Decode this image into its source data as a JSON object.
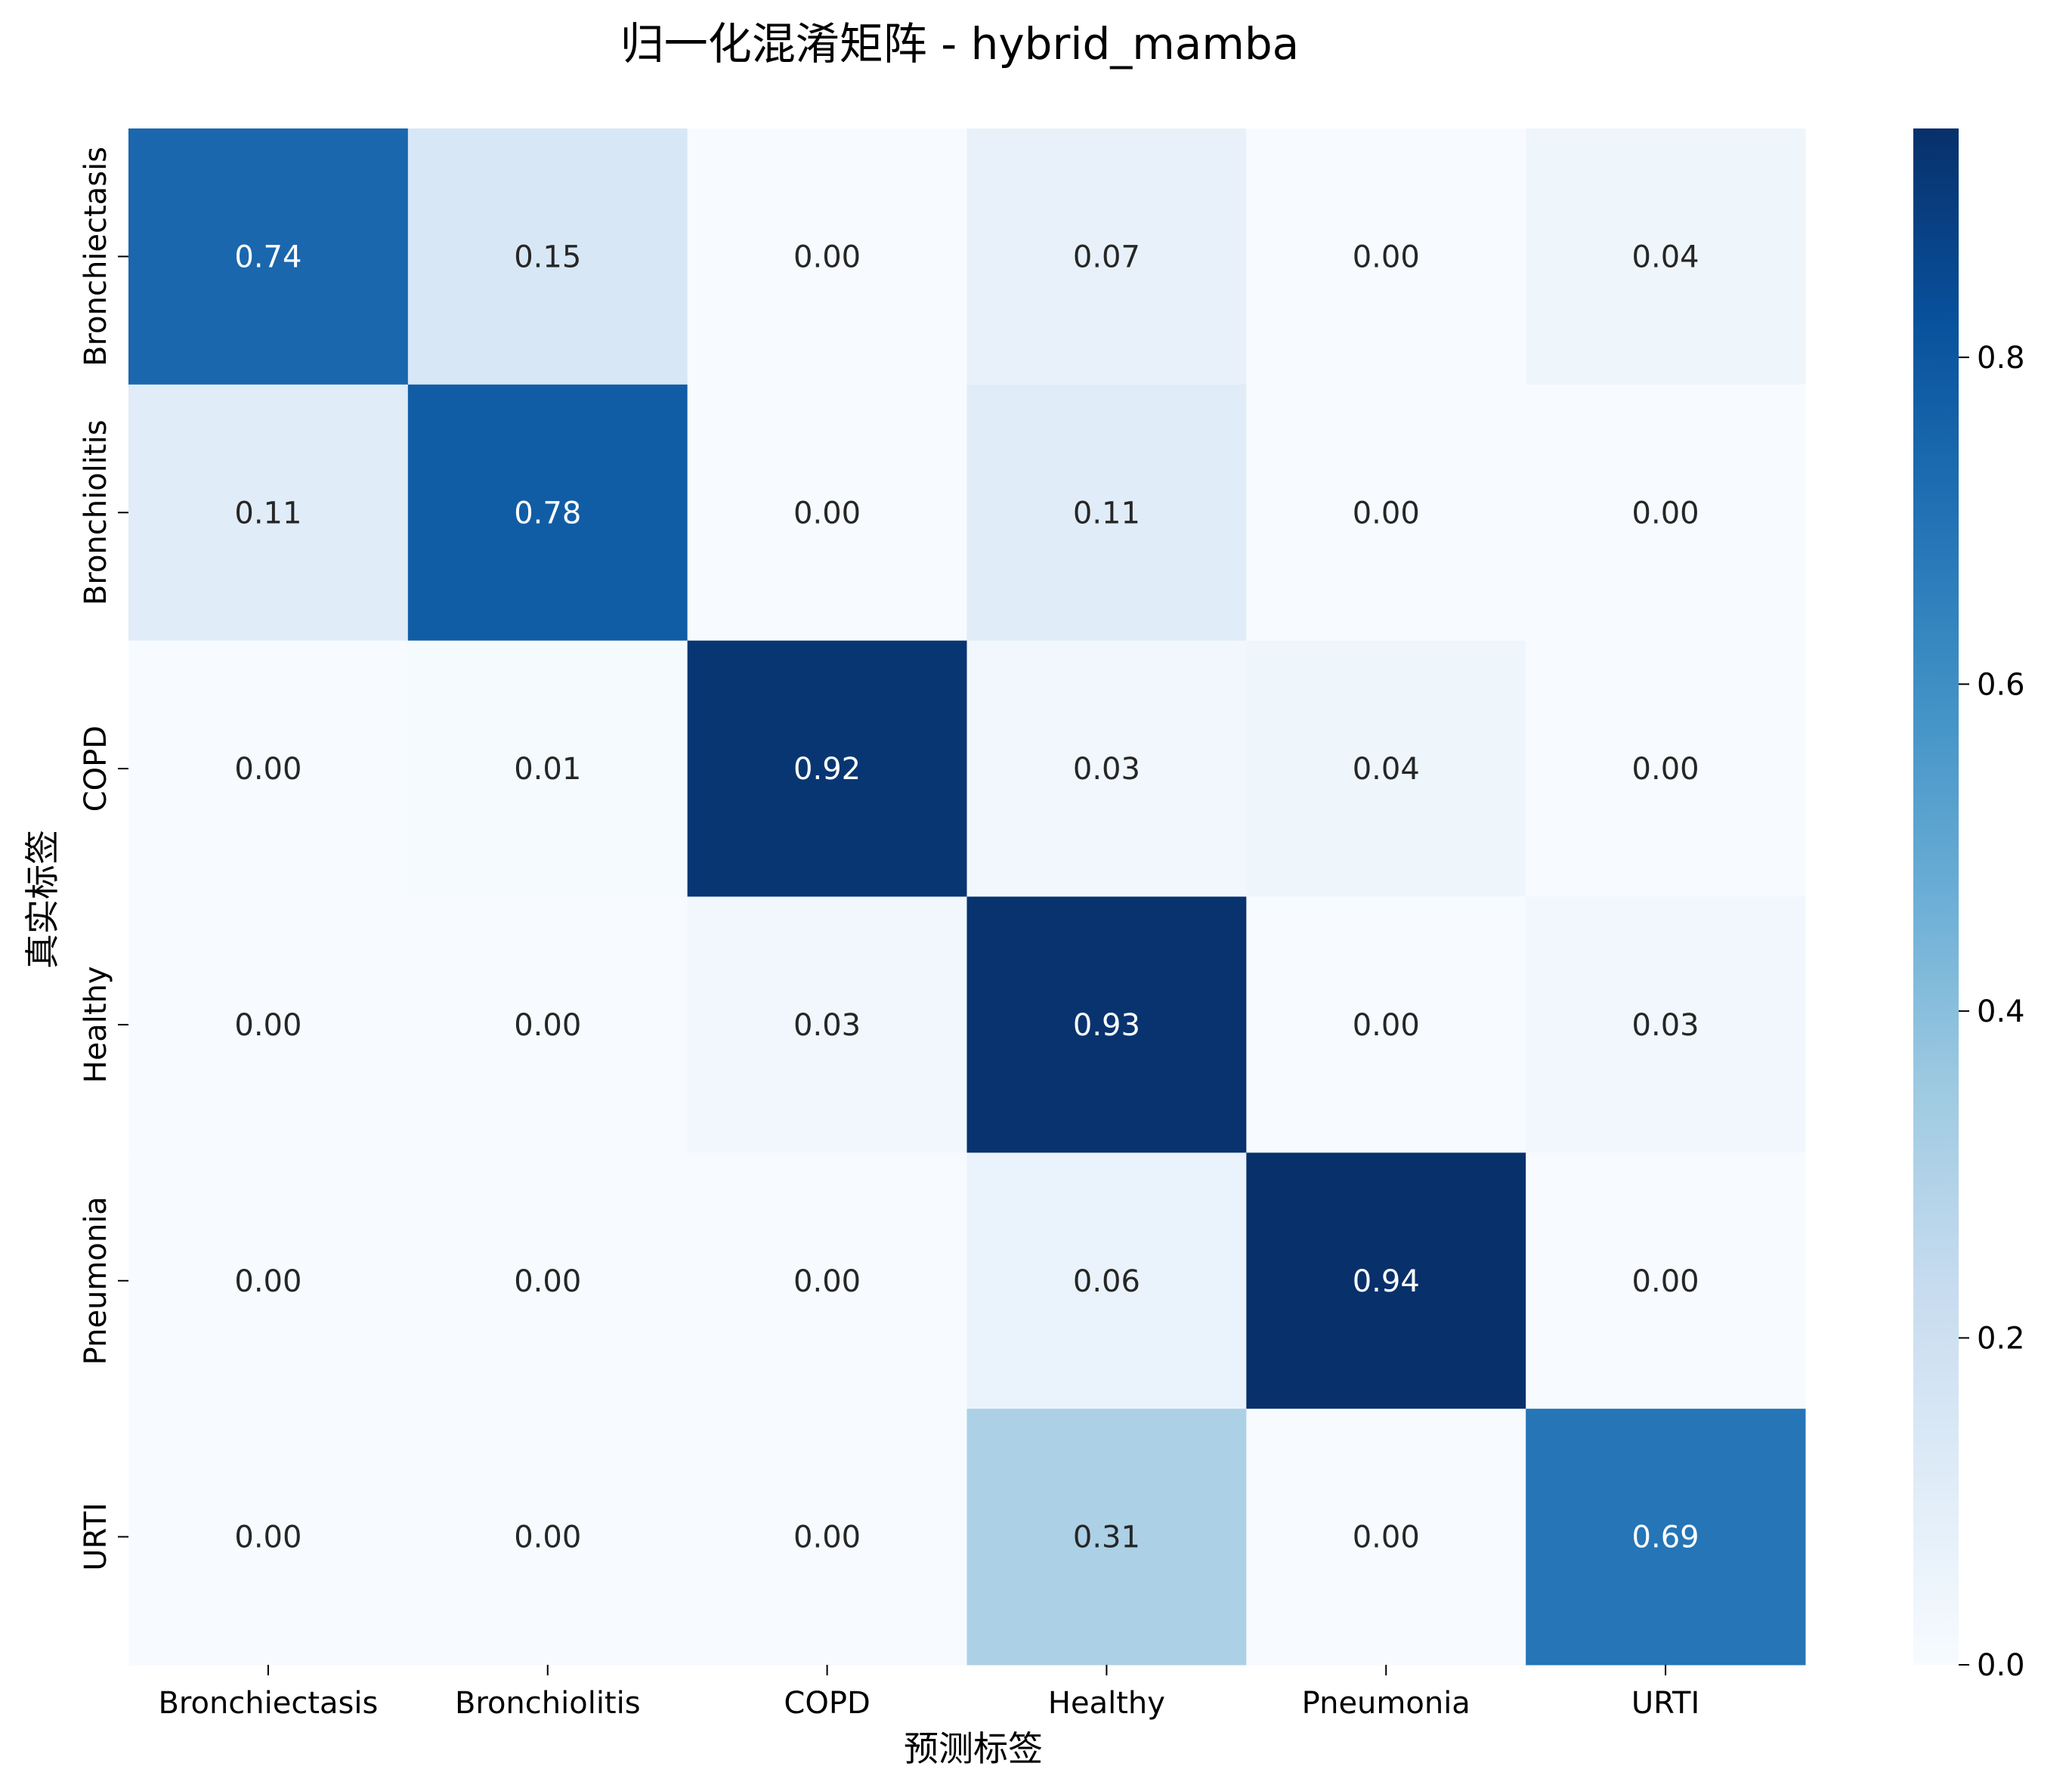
{
  "chart_data": {
    "type": "heatmap",
    "title": "归一化混淆矩阵 - hybrid_mamba",
    "xlabel": "预测标签",
    "ylabel": "真实标签",
    "x_categories": [
      "Bronchiectasis",
      "Bronchiolitis",
      "COPD",
      "Healthy",
      "Pneumonia",
      "URTI"
    ],
    "y_categories": [
      "Bronchiectasis",
      "Bronchiolitis",
      "COPD",
      "Healthy",
      "Pneumonia",
      "URTI"
    ],
    "values": [
      [
        0.74,
        0.15,
        0.0,
        0.07,
        0.0,
        0.04
      ],
      [
        0.11,
        0.78,
        0.0,
        0.11,
        0.0,
        0.0
      ],
      [
        0.0,
        0.01,
        0.92,
        0.03,
        0.04,
        0.0
      ],
      [
        0.0,
        0.0,
        0.03,
        0.93,
        0.0,
        0.03
      ],
      [
        0.0,
        0.0,
        0.0,
        0.06,
        0.94,
        0.0
      ],
      [
        0.0,
        0.0,
        0.0,
        0.31,
        0.0,
        0.69
      ]
    ],
    "value_format": "0.00",
    "colormap": "Blues",
    "color_range": [
      0.0,
      0.94
    ],
    "colorbar_ticks": [
      0.0,
      0.2,
      0.4,
      0.6,
      0.8
    ],
    "colorbar_tick_labels": [
      "0.0",
      "0.2",
      "0.4",
      "0.6",
      "0.8"
    ],
    "grid": false,
    "colors": {
      "text_dark": "#262626",
      "text_light": "#ffffff",
      "axis_text": "#000000"
    }
  }
}
